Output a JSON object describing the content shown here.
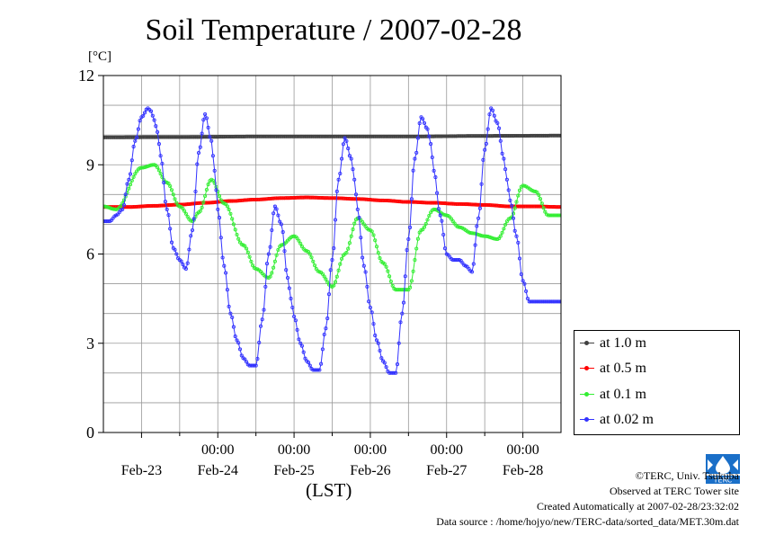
{
  "chart_data": {
    "type": "line",
    "title": "Soil Temperature / 2007-02-28",
    "ylabel": "[°C]",
    "xlabel": "(LST)",
    "ylim": [
      0,
      12
    ],
    "xlim": [
      0,
      144
    ],
    "yticks": [
      0,
      3,
      6,
      9,
      12
    ],
    "yticklabels": [
      "0",
      "3",
      "6",
      "9",
      "12"
    ],
    "xticks": [
      12,
      24,
      36,
      48,
      60,
      72,
      84,
      96,
      108,
      120,
      132
    ],
    "xticklabels_time": [
      "00:00",
      "00:00",
      "00:00",
      "00:00",
      "00:00"
    ],
    "xticklabels_date": [
      "Feb-23",
      "Feb-24",
      "Feb-25",
      "Feb-26",
      "Feb-27",
      "Feb-28"
    ],
    "x_unit": "hours from 2007-02-22 18:00 LST",
    "grid": true,
    "legend_position": "right",
    "series": [
      {
        "name": "at 1.0 m",
        "color": "#404040",
        "x": [
          0,
          24,
          48,
          72,
          96,
          120,
          144
        ],
        "values": [
          9.92,
          9.93,
          9.95,
          9.95,
          9.95,
          9.97,
          9.98
        ]
      },
      {
        "name": "at 0.5 m",
        "color": "#ff0000",
        "x": [
          0,
          8,
          16,
          24,
          32,
          40,
          48,
          56,
          64,
          72,
          80,
          88,
          96,
          104,
          112,
          120,
          128,
          136,
          144
        ],
        "values": [
          7.58,
          7.58,
          7.62,
          7.66,
          7.72,
          7.78,
          7.83,
          7.88,
          7.9,
          7.88,
          7.85,
          7.8,
          7.75,
          7.72,
          7.68,
          7.65,
          7.6,
          7.6,
          7.58
        ]
      },
      {
        "name": "at 0.1 m",
        "color": "#33ee33",
        "x": [
          0,
          4,
          12,
          16,
          20,
          24,
          28,
          30,
          34,
          38,
          44,
          48,
          52,
          56,
          60,
          64,
          68,
          72,
          76,
          80,
          84,
          88,
          92,
          96,
          100,
          104,
          108,
          112,
          116,
          120,
          124,
          128,
          132,
          136,
          140,
          144
        ],
        "values": [
          7.6,
          7.5,
          8.9,
          9.0,
          8.4,
          7.6,
          7.1,
          7.4,
          8.5,
          7.7,
          6.3,
          5.5,
          5.2,
          6.3,
          6.6,
          6.1,
          5.4,
          4.9,
          6.0,
          7.2,
          6.8,
          5.7,
          4.8,
          4.8,
          6.8,
          7.5,
          7.3,
          6.9,
          6.7,
          6.6,
          6.5,
          7.2,
          8.3,
          8.1,
          7.3,
          7.3
        ]
      },
      {
        "name": "at 0.02 m",
        "color": "#3333ff",
        "x": [
          0,
          2,
          4,
          6,
          8,
          10,
          12,
          14,
          15,
          16,
          17,
          18,
          20,
          22,
          24,
          26,
          28,
          30,
          32,
          34,
          35,
          36,
          38,
          40,
          42,
          44,
          46,
          48,
          50,
          52,
          54,
          56,
          58,
          59,
          60,
          62,
          64,
          66,
          68,
          70,
          72,
          74,
          76,
          78,
          79,
          80,
          82,
          84,
          86,
          88,
          90,
          92,
          94,
          96,
          98,
          100,
          102,
          103,
          104,
          106,
          108,
          110,
          112,
          114,
          116,
          118,
          120,
          122,
          124,
          126,
          127,
          128,
          130,
          132,
          134,
          136,
          138,
          140,
          142,
          144
        ],
        "values": [
          7.1,
          7.1,
          7.3,
          7.5,
          8.5,
          9.8,
          10.6,
          10.9,
          10.8,
          10.5,
          10.1,
          9.3,
          7.5,
          6.2,
          5.8,
          5.5,
          6.8,
          9.4,
          10.7,
          9.8,
          8.8,
          7.5,
          5.6,
          4.0,
          3.1,
          2.5,
          2.25,
          2.25,
          3.8,
          6.0,
          7.6,
          7.0,
          5.2,
          4.5,
          3.9,
          3.0,
          2.4,
          2.1,
          2.1,
          3.5,
          5.8,
          8.5,
          9.9,
          9.2,
          8.5,
          7.5,
          5.6,
          4.2,
          3.1,
          2.4,
          2.0,
          2.0,
          4.0,
          6.5,
          9.2,
          10.6,
          10.2,
          9.7,
          8.8,
          7.3,
          6.0,
          5.8,
          5.8,
          5.6,
          5.4,
          7.2,
          9.5,
          10.9,
          10.4,
          9.2,
          8.5,
          7.8,
          6.6,
          5.1,
          4.4,
          4.4,
          4.4,
          4.4,
          4.4,
          4.4
        ]
      }
    ]
  },
  "credits": {
    "copyright": "©TERC, Univ. Tsukuba",
    "observed": "Observed at TERC Tower site",
    "created": "Created Automatically at 2007-02-28/23:32:02",
    "source": "Data source : /home/hojyo/new/TERC-data/sorted_data/MET.30m.dat",
    "logo_text": "TERC"
  }
}
